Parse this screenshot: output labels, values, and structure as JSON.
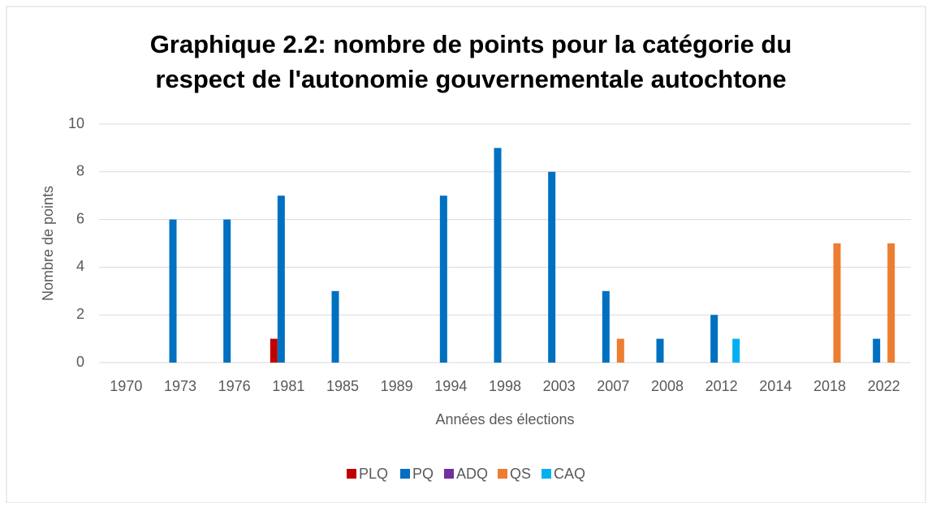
{
  "chart_data": {
    "type": "bar",
    "title": [
      "Graphique 2.2: nombre de points pour la catégorie du",
      "respect de l'autonomie gouvernementale autochtone"
    ],
    "x_label": "Années des élections",
    "y_label": "Nombre de points",
    "categories": [
      "1970",
      "1973",
      "1976",
      "1981",
      "1985",
      "1989",
      "1994",
      "1998",
      "2003",
      "2007",
      "2008",
      "2012",
      "2014",
      "2018",
      "2022"
    ],
    "series": [
      {
        "name": "PLQ",
        "color": "#c00000",
        "values": [
          0,
          0,
          0,
          1,
          0,
          0,
          0,
          0,
          0,
          0,
          0,
          0,
          0,
          0,
          0
        ]
      },
      {
        "name": "PQ",
        "color": "#0070c0",
        "values": [
          0,
          6,
          6,
          7,
          3,
          0,
          7,
          9,
          8,
          3,
          1,
          2,
          0,
          0,
          1
        ]
      },
      {
        "name": "ADQ",
        "color": "#7030a0",
        "values": [
          0,
          0,
          0,
          0,
          0,
          0,
          0,
          0,
          0,
          0,
          0,
          0,
          0,
          0,
          0
        ]
      },
      {
        "name": "QS",
        "color": "#ed7d31",
        "values": [
          0,
          0,
          0,
          0,
          0,
          0,
          0,
          0,
          0,
          1,
          0,
          0,
          0,
          5,
          5
        ]
      },
      {
        "name": "CAQ",
        "color": "#00b0f0",
        "values": [
          0,
          0,
          0,
          0,
          0,
          0,
          0,
          0,
          0,
          0,
          0,
          1,
          0,
          0,
          0
        ]
      }
    ],
    "ylim": [
      0,
      10
    ],
    "yticks": [
      0,
      2,
      4,
      6,
      8,
      10
    ],
    "grid": true,
    "legend": "bottom"
  }
}
